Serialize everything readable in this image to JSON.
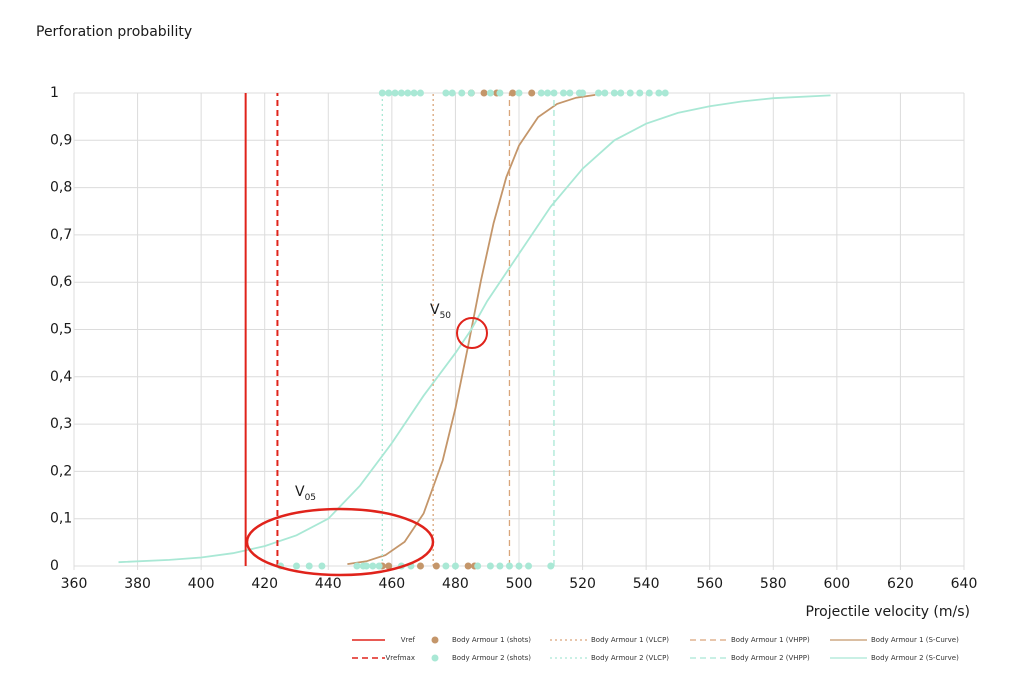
{
  "chart_data": {
    "type": "line",
    "y_label": "Perforation probability",
    "x_label": "Projectile velocity (m/s)",
    "xlim": [
      360,
      640
    ],
    "xticks": [
      360,
      380,
      400,
      420,
      440,
      460,
      480,
      500,
      520,
      540,
      560,
      580,
      600,
      620,
      640
    ],
    "ylim": [
      0,
      1
    ],
    "yticks": [
      0,
      {
        "value": 0.1,
        "label": "0,1"
      },
      {
        "value": 0.2,
        "label": "0,2"
      },
      {
        "value": 0.3,
        "label": "0,3"
      },
      {
        "value": 0.4,
        "label": "0,4"
      },
      {
        "value": 0.5,
        "label": "0,5"
      },
      {
        "value": 0.6,
        "label": "0,6"
      },
      {
        "value": 0.7,
        "label": "0,7"
      },
      {
        "value": 0.8,
        "label": "0,8"
      },
      {
        "value": 0.9,
        "label": "0,9"
      },
      1
    ],
    "grid": true,
    "series": [
      {
        "name": "Vref",
        "color": "#e0231b",
        "kind": "vline",
        "dash": "solid",
        "x": 414
      },
      {
        "name": "Vrefmax",
        "color": "#e0231b",
        "kind": "vline",
        "dash": "dashed",
        "x": 424
      },
      {
        "name": "Body Armour 1 (shots)",
        "color": "#c4966a",
        "kind": "shots",
        "x": [
          457,
          459,
          469,
          474,
          484,
          486,
          485,
          489,
          493,
          498,
          504
        ],
        "values": [
          0,
          0,
          0,
          0,
          0,
          0,
          1,
          1,
          1,
          1,
          1
        ]
      },
      {
        "name": "Body Armour 2 (shots)",
        "color": "#a9e8d5",
        "kind": "shots",
        "x": [
          425,
          430,
          434,
          438,
          449,
          451,
          452,
          454,
          456,
          463,
          466,
          477,
          480,
          487,
          491,
          494,
          497,
          500,
          503,
          510,
          457,
          459,
          461,
          463,
          465,
          467,
          469,
          477,
          479,
          482,
          485,
          491,
          494,
          500,
          507,
          509,
          511,
          514,
          516,
          519,
          520,
          525,
          527,
          530,
          532,
          535,
          538,
          541,
          544,
          546
        ],
        "values": [
          0,
          0,
          0,
          0,
          0,
          0,
          0,
          0,
          0,
          0,
          0,
          0,
          0,
          0,
          0,
          0,
          0,
          0,
          0,
          0,
          1,
          1,
          1,
          1,
          1,
          1,
          1,
          1,
          1,
          1,
          1,
          1,
          1,
          1,
          1,
          1,
          1,
          1,
          1,
          1,
          1,
          1,
          1,
          1,
          1,
          1,
          1,
          1,
          1,
          1
        ]
      },
      {
        "name": "Body Armour 1 (VLCP)",
        "color": "#d9a57a",
        "kind": "vline",
        "dash": "dotted",
        "x": 473
      },
      {
        "name": "Body Armour 2 (VLCP)",
        "color": "#a9e8d5",
        "kind": "vline",
        "dash": "dotted",
        "x": 457
      },
      {
        "name": "Body Armour 1 (VHPP)",
        "color": "#d9a57a",
        "kind": "vline",
        "dash": "dashed",
        "x": 497
      },
      {
        "name": "Body Armour 2 (VHPP)",
        "color": "#a9e8d5",
        "kind": "vline",
        "dash": "dashed",
        "x": 511
      },
      {
        "name": "Body Armour 1 (S-Curve)",
        "color": "#c4966a",
        "kind": "curve",
        "x": [
          446,
          452,
          458,
          464,
          470,
          476,
          480,
          484,
          488,
          492,
          496,
          500,
          506,
          512,
          518,
          524
        ],
        "values": [
          0.004,
          0.01,
          0.023,
          0.051,
          0.111,
          0.223,
          0.333,
          0.465,
          0.603,
          0.725,
          0.822,
          0.889,
          0.949,
          0.977,
          0.99,
          0.996
        ]
      },
      {
        "name": "Body Armour 2 (S-Curve)",
        "color": "#a9e8d5",
        "kind": "curve",
        "x": [
          374,
          390,
          400,
          410,
          420,
          430,
          440,
          450,
          460,
          470,
          480,
          485,
          490,
          500,
          510,
          520,
          530,
          540,
          550,
          560,
          570,
          580,
          598
        ],
        "values": [
          0.008,
          0.013,
          0.018,
          0.027,
          0.042,
          0.065,
          0.1,
          0.17,
          0.26,
          0.36,
          0.45,
          0.5,
          0.56,
          0.66,
          0.76,
          0.84,
          0.9,
          0.935,
          0.958,
          0.972,
          0.982,
          0.989,
          0.995
        ]
      }
    ],
    "annotations": [
      {
        "text": "V",
        "sub": "50"
      },
      {
        "text": "V",
        "sub": "05"
      }
    ]
  }
}
